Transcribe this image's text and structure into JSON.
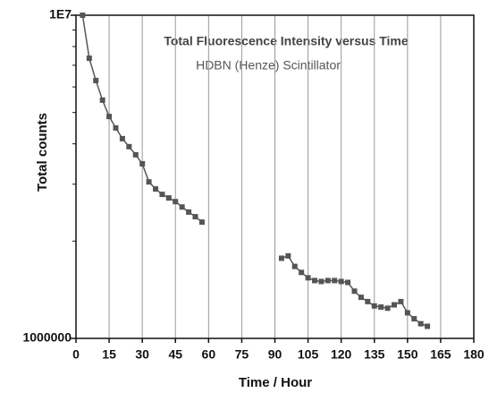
{
  "chart_data": {
    "type": "line",
    "title": "Total Fluorescence Intensity versus Time",
    "subtitle": "HDBN (Henze) Scintillator",
    "x_label": "Time / Hour",
    "y_label": "Total counts",
    "log_y": true,
    "grid": true,
    "color": "#555555",
    "xlim": [
      0,
      180
    ],
    "xticks": [
      0,
      15,
      30,
      45,
      60,
      75,
      90,
      105,
      120,
      135,
      150,
      165,
      180
    ],
    "ylim": [
      1000000,
      10000000
    ],
    "yticks": [
      {
        "value": 1000000,
        "label": "1000000"
      },
      {
        "value": 10000000,
        "label": "1E7"
      }
    ],
    "yminor_ticks": [
      2000000,
      3000000,
      4000000,
      5000000,
      6000000,
      7000000,
      8000000,
      9000000
    ],
    "x": [
      3,
      6,
      9,
      12,
      15,
      18,
      21,
      24,
      27,
      30,
      33,
      36,
      39,
      42,
      45,
      48,
      51,
      54,
      57,
      75,
      93,
      96,
      99,
      102,
      105,
      108,
      111,
      114,
      117,
      120,
      123,
      126,
      129,
      132,
      135,
      138,
      141,
      144,
      147,
      150,
      153,
      156,
      159
    ],
    "series": [
      {
        "name": null,
        "color": "#555555",
        "values": [
          10000000,
          7360000,
          6280000,
          5460000,
          4860000,
          4480000,
          4150000,
          3920000,
          3700000,
          3470000,
          3050000,
          2900000,
          2790000,
          2720000,
          2650000,
          2550000,
          2460000,
          2380000,
          2290000,
          null,
          1770000,
          1800000,
          1670000,
          1600000,
          1540000,
          1510000,
          1500000,
          1510000,
          1510000,
          1500000,
          1490000,
          1400000,
          1340000,
          1300000,
          1260000,
          1250000,
          1240000,
          1270000,
          1300000,
          1200000,
          1150000,
          1110000,
          1090000
        ]
      }
    ]
  }
}
